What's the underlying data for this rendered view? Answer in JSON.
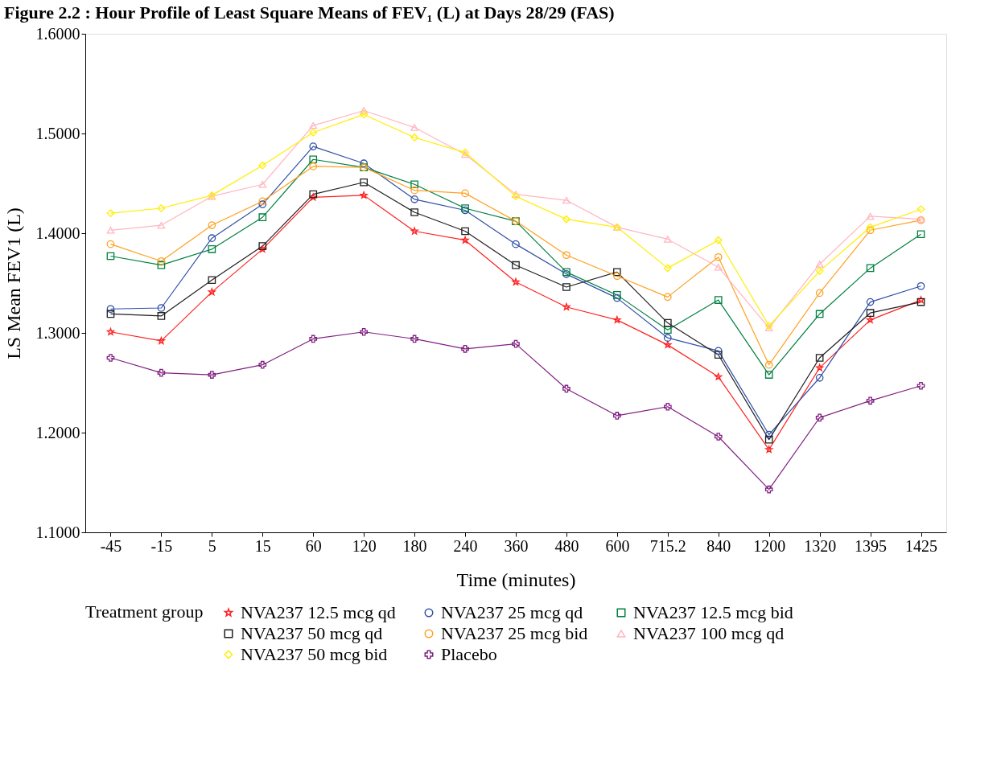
{
  "chart_data": {
    "type": "line",
    "title": "Figure 2.2 : Hour Profile of Least Square Means of FEV₁ (L) at Days 28/29 (FAS)",
    "xlabel": "Time (minutes)",
    "ylabel": "LS Mean FEV1 (L)",
    "legend_title": "Treatment group",
    "legend": "bottom",
    "grid": false,
    "categories": [
      "-45",
      "-15",
      "5",
      "15",
      "60",
      "120",
      "180",
      "240",
      "360",
      "480",
      "600",
      "715.2",
      "840",
      "1200",
      "1320",
      "1395",
      "1425"
    ],
    "ylim": [
      1.1,
      1.6
    ],
    "yticks": [
      {
        "value": 1.1,
        "label": "1.1000"
      },
      {
        "value": 1.2,
        "label": "1.2000"
      },
      {
        "value": 1.3,
        "label": "1.3000"
      },
      {
        "value": 1.4,
        "label": "1.4000"
      },
      {
        "value": 1.5,
        "label": "1.5000"
      },
      {
        "value": 1.6,
        "label": "1.6000"
      }
    ],
    "series": [
      {
        "name": "NVA237 12.5 mcg qd",
        "color": "#ff2020",
        "marker": "star",
        "values": [
          1.301,
          1.292,
          1.341,
          1.384,
          1.436,
          1.438,
          1.402,
          1.393,
          1.351,
          1.326,
          1.313,
          1.288,
          1.256,
          1.183,
          1.265,
          1.313,
          1.333
        ]
      },
      {
        "name": "NVA237 25 mcg qd",
        "color": "#3050a8",
        "marker": "circle",
        "values": [
          1.324,
          1.325,
          1.395,
          1.429,
          1.487,
          1.47,
          1.434,
          1.423,
          1.389,
          1.359,
          1.335,
          1.295,
          1.282,
          1.198,
          1.255,
          1.331,
          1.347
        ]
      },
      {
        "name": "NVA237 12.5 mcg bid",
        "color": "#008040",
        "marker": "square",
        "values": [
          1.377,
          1.368,
          1.384,
          1.416,
          1.474,
          1.466,
          1.449,
          1.425,
          1.412,
          1.361,
          1.338,
          1.303,
          1.333,
          1.258,
          1.319,
          1.365,
          1.399
        ]
      },
      {
        "name": "NVA237 50 mcg qd",
        "color": "#202020",
        "marker": "square",
        "values": [
          1.319,
          1.317,
          1.353,
          1.387,
          1.439,
          1.451,
          1.421,
          1.402,
          1.368,
          1.346,
          1.361,
          1.31,
          1.278,
          1.193,
          1.275,
          1.32,
          1.331
        ]
      },
      {
        "name": "NVA237 25 mcg bid",
        "color": "#ffa020",
        "marker": "circle",
        "values": [
          1.389,
          1.372,
          1.408,
          1.432,
          1.467,
          1.466,
          1.443,
          1.44,
          1.412,
          1.378,
          1.357,
          1.336,
          1.376,
          1.268,
          1.34,
          1.403,
          1.413
        ]
      },
      {
        "name": "NVA237 100 mcg qd",
        "color": "#ffb6c1",
        "marker": "triangle",
        "values": [
          1.403,
          1.408,
          1.437,
          1.449,
          1.508,
          1.523,
          1.506,
          1.479,
          1.439,
          1.433,
          1.406,
          1.394,
          1.366,
          1.305,
          1.369,
          1.417,
          1.414
        ]
      },
      {
        "name": "NVA237 50 mcg bid",
        "color": "#ffee00",
        "marker": "diamond",
        "values": [
          1.42,
          1.425,
          1.438,
          1.468,
          1.501,
          1.519,
          1.496,
          1.481,
          1.437,
          1.414,
          1.406,
          1.365,
          1.393,
          1.307,
          1.362,
          1.406,
          1.424
        ]
      },
      {
        "name": "Placebo",
        "color": "#802080",
        "marker": "cross",
        "values": [
          1.275,
          1.26,
          1.258,
          1.268,
          1.294,
          1.301,
          1.294,
          1.284,
          1.289,
          1.244,
          1.217,
          1.226,
          1.196,
          1.143,
          1.215,
          1.232,
          1.247
        ]
      }
    ]
  }
}
